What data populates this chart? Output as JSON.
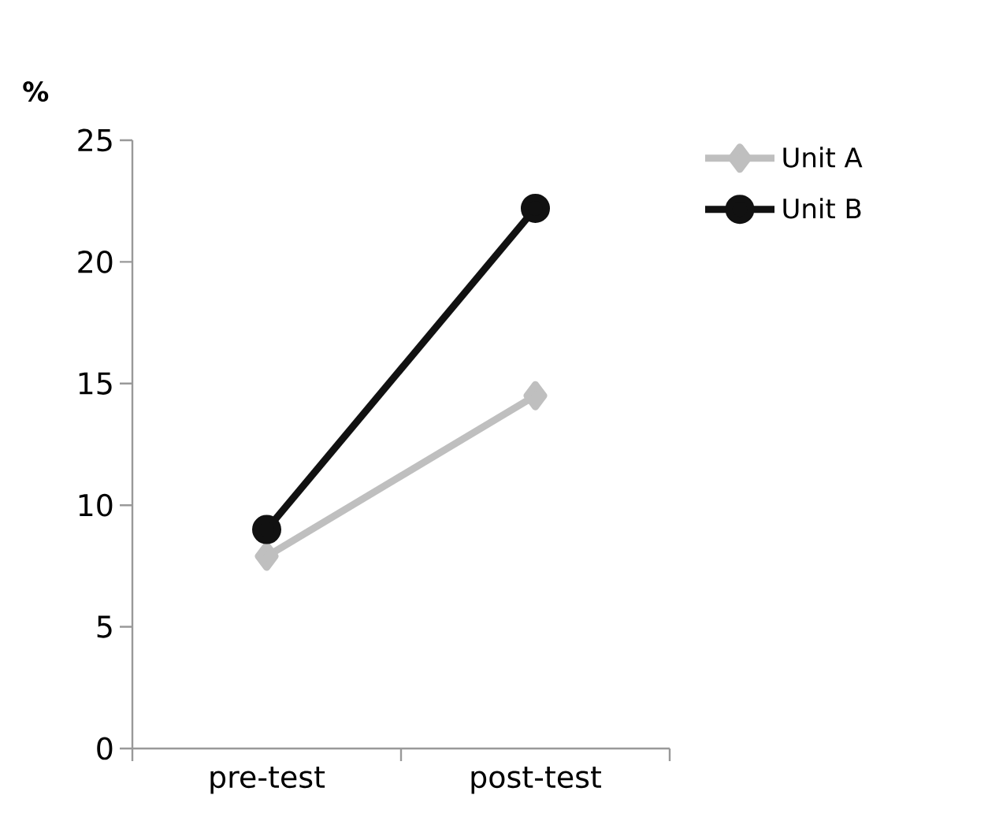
{
  "chart_data": {
    "type": "line",
    "ylabel": "%",
    "categories": [
      "pre-test",
      "post-test"
    ],
    "series": [
      {
        "name": "Unit A",
        "color": "#bfbfbf",
        "values": [
          7.9,
          14.5
        ],
        "marker": "diamond"
      },
      {
        "name": "Unit B",
        "color": "#111111",
        "values": [
          9.0,
          22.2
        ],
        "marker": "circle"
      }
    ],
    "ylim": [
      0,
      25
    ],
    "yticks": [
      0,
      5,
      10,
      15,
      20,
      25
    ],
    "legend": "top right",
    "grid": false
  }
}
